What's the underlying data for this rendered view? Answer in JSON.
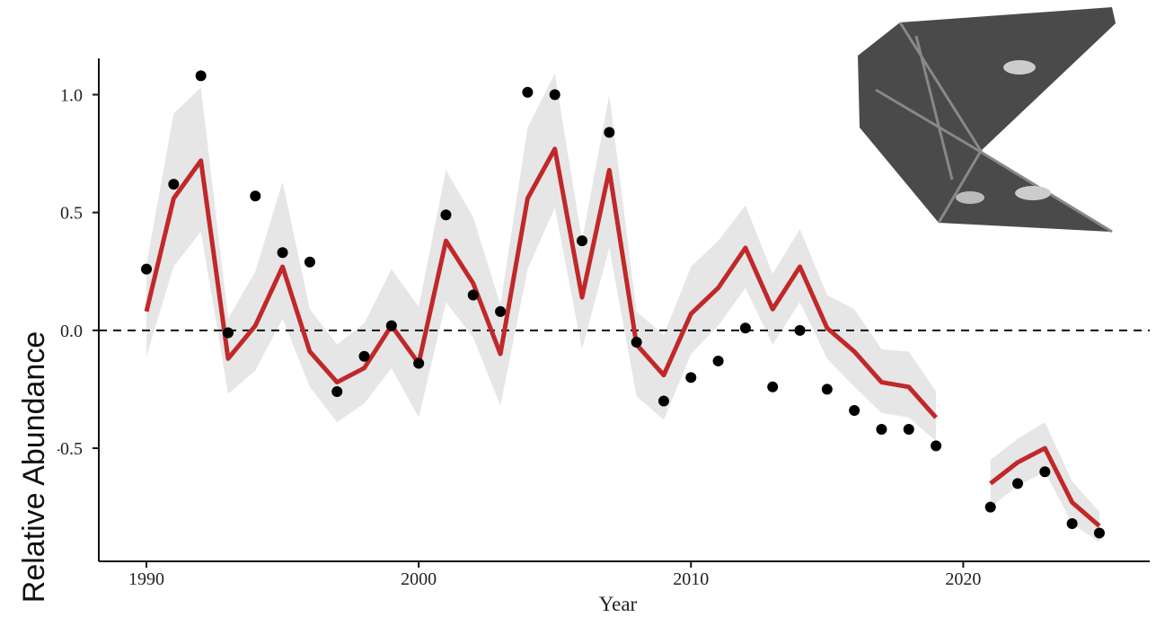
{
  "chart_data": {
    "type": "scatter-fit",
    "x_label": "Year",
    "y_label": "Relative Abundance",
    "x": [
      1990,
      1991,
      1992,
      1993,
      1994,
      1995,
      1996,
      1997,
      1998,
      1999,
      2000,
      2001,
      2002,
      2003,
      2004,
      2005,
      2006,
      2007,
      2008,
      2009,
      2010,
      2011,
      2012,
      2013,
      2014,
      2015,
      2016,
      2017,
      2018,
      2019,
      2020,
      2021,
      2022,
      2023,
      2024,
      2025
    ],
    "points": [
      0.26,
      0.62,
      1.08,
      -0.01,
      0.57,
      0.33,
      0.29,
      -0.26,
      -0.11,
      0.02,
      -0.14,
      0.49,
      0.15,
      0.08,
      1.01,
      1.0,
      0.38,
      0.84,
      -0.05,
      -0.3,
      -0.2,
      -0.13,
      0.01,
      -0.24,
      0.0,
      -0.25,
      -0.34,
      -0.42,
      -0.42,
      -0.49,
      null,
      -0.75,
      -0.65,
      -0.6,
      -0.82,
      -0.86
    ],
    "fit": [
      0.08,
      0.56,
      0.72,
      -0.12,
      0.02,
      0.27,
      -0.09,
      -0.22,
      -0.16,
      0.02,
      -0.14,
      0.38,
      0.2,
      -0.1,
      0.56,
      0.77,
      0.14,
      0.68,
      -0.06,
      -0.19,
      0.07,
      0.18,
      0.35,
      0.09,
      0.27,
      0.01,
      -0.09,
      -0.22,
      -0.24,
      -0.37,
      null,
      -0.65,
      -0.56,
      -0.5,
      -0.73,
      -0.83
    ],
    "upper": [
      0.28,
      0.92,
      1.03,
      0.05,
      0.25,
      0.63,
      0.09,
      -0.06,
      0.03,
      0.26,
      0.1,
      0.68,
      0.48,
      0.11,
      0.86,
      1.09,
      0.38,
      1.0,
      0.08,
      -0.02,
      0.27,
      0.38,
      0.53,
      0.24,
      0.43,
      0.15,
      0.09,
      -0.08,
      -0.09,
      -0.26,
      null,
      -0.55,
      -0.46,
      -0.39,
      -0.64,
      -0.77
    ],
    "lower": [
      -0.11,
      0.27,
      0.42,
      -0.27,
      -0.17,
      0.05,
      -0.24,
      -0.39,
      -0.31,
      -0.16,
      -0.37,
      0.12,
      -0.03,
      -0.32,
      0.26,
      0.52,
      -0.08,
      0.35,
      -0.28,
      -0.38,
      -0.1,
      0.02,
      0.18,
      -0.06,
      0.12,
      -0.12,
      -0.24,
      -0.35,
      -0.37,
      -0.47,
      null,
      -0.75,
      -0.66,
      -0.6,
      -0.82,
      -0.9
    ],
    "point_color": "#000000",
    "fit_color": "#c0282a",
    "band_color": "#e6e6e6",
    "reference_line": 0,
    "xlim": [
      1988.25,
      2026.85
    ],
    "ylim": [
      -0.98,
      1.154
    ],
    "xticks": [
      1990,
      2000,
      2010,
      2020
    ],
    "yticks": [
      {
        "value": 1,
        "label": "1.0"
      },
      {
        "value": 0.5,
        "label": "0.5"
      },
      {
        "value": 0,
        "label": "0.0"
      },
      {
        "value": -0.5,
        "label": "-0.5"
      }
    ]
  }
}
